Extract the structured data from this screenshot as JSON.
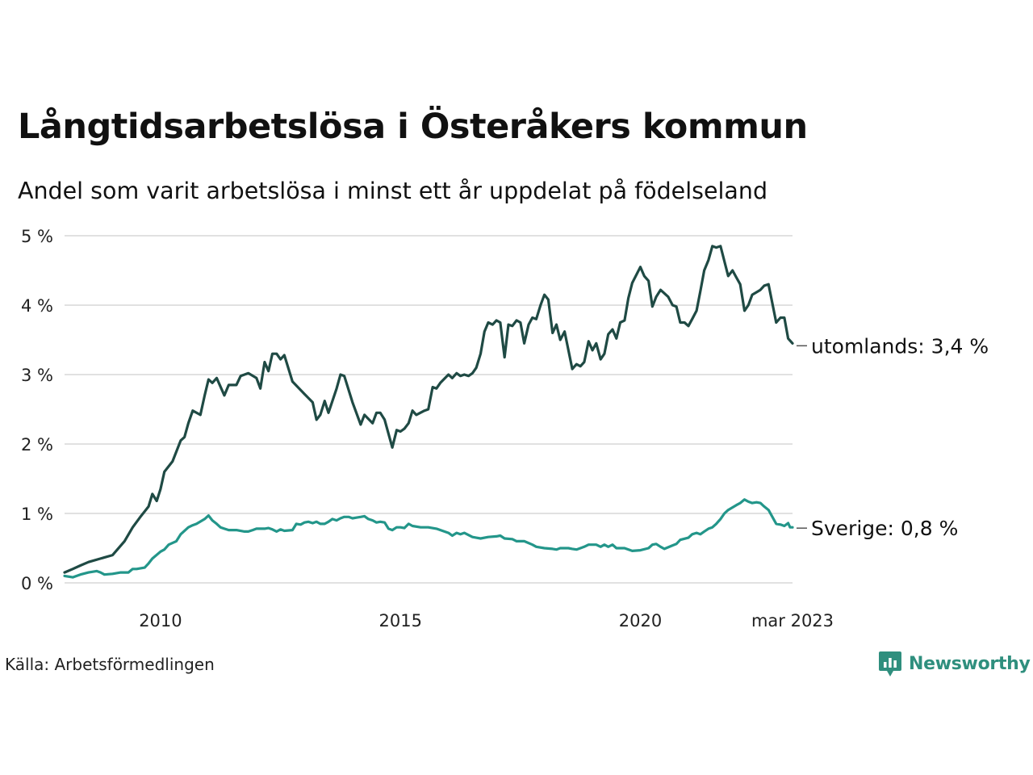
{
  "title": "Långtidsarbetslösa i Österåkers kommun",
  "subtitle": "Andel som varit arbetslösa i minst ett år uppdelat på födelseland",
  "source": "Källa: Arbetsförmedlingen",
  "brand": {
    "name": "Newsworthy",
    "logo_icon": "newsworthy-chart-bubble-icon",
    "color": "#2f8f7e"
  },
  "chart_data": {
    "type": "line",
    "grid": true,
    "ylim": [
      0,
      5
    ],
    "y_ticks": [
      0,
      1,
      2,
      3,
      4,
      5
    ],
    "y_tick_labels": [
      "0 %",
      "1 %",
      "2 %",
      "3 %",
      "4 %",
      "5 %"
    ],
    "x_range": [
      2008.0,
      2023.17
    ],
    "x_ticks": [
      2010,
      2015,
      2020,
      2023.17
    ],
    "x_tick_labels": [
      "2010",
      "2015",
      "2020",
      "mar 2023"
    ],
    "series": [
      {
        "name": "utomlands",
        "end_label": "utomlands: 3,4 %",
        "color": "#1f4a44",
        "points": [
          [
            2008.0,
            0.15
          ],
          [
            2008.17,
            0.2
          ],
          [
            2008.33,
            0.25
          ],
          [
            2008.5,
            0.3
          ],
          [
            2008.75,
            0.35
          ],
          [
            2009.0,
            0.4
          ],
          [
            2009.25,
            0.6
          ],
          [
            2009.42,
            0.8
          ],
          [
            2009.58,
            0.95
          ],
          [
            2009.75,
            1.1
          ],
          [
            2009.83,
            1.28
          ],
          [
            2009.92,
            1.18
          ],
          [
            2010.0,
            1.35
          ],
          [
            2010.08,
            1.6
          ],
          [
            2010.25,
            1.75
          ],
          [
            2010.42,
            2.05
          ],
          [
            2010.5,
            2.1
          ],
          [
            2010.58,
            2.3
          ],
          [
            2010.67,
            2.48
          ],
          [
            2010.83,
            2.42
          ],
          [
            2010.92,
            2.7
          ],
          [
            2011.0,
            2.93
          ],
          [
            2011.08,
            2.88
          ],
          [
            2011.17,
            2.95
          ],
          [
            2011.33,
            2.7
          ],
          [
            2011.42,
            2.85
          ],
          [
            2011.58,
            2.85
          ],
          [
            2011.67,
            2.98
          ],
          [
            2011.83,
            3.02
          ],
          [
            2012.0,
            2.95
          ],
          [
            2012.08,
            2.8
          ],
          [
            2012.17,
            3.18
          ],
          [
            2012.25,
            3.05
          ],
          [
            2012.33,
            3.3
          ],
          [
            2012.42,
            3.3
          ],
          [
            2012.5,
            3.22
          ],
          [
            2012.58,
            3.28
          ],
          [
            2012.75,
            2.9
          ],
          [
            2013.0,
            2.72
          ],
          [
            2013.17,
            2.6
          ],
          [
            2013.25,
            2.35
          ],
          [
            2013.33,
            2.42
          ],
          [
            2013.42,
            2.62
          ],
          [
            2013.5,
            2.45
          ],
          [
            2013.67,
            2.8
          ],
          [
            2013.75,
            3.0
          ],
          [
            2013.83,
            2.98
          ],
          [
            2014.0,
            2.6
          ],
          [
            2014.17,
            2.28
          ],
          [
            2014.25,
            2.42
          ],
          [
            2014.42,
            2.3
          ],
          [
            2014.5,
            2.45
          ],
          [
            2014.58,
            2.45
          ],
          [
            2014.67,
            2.35
          ],
          [
            2014.83,
            1.95
          ],
          [
            2014.92,
            2.2
          ],
          [
            2015.0,
            2.18
          ],
          [
            2015.08,
            2.22
          ],
          [
            2015.17,
            2.3
          ],
          [
            2015.25,
            2.48
          ],
          [
            2015.33,
            2.42
          ],
          [
            2015.5,
            2.48
          ],
          [
            2015.58,
            2.5
          ],
          [
            2015.67,
            2.82
          ],
          [
            2015.75,
            2.8
          ],
          [
            2015.83,
            2.88
          ],
          [
            2016.0,
            3.0
          ],
          [
            2016.08,
            2.95
          ],
          [
            2016.17,
            3.02
          ],
          [
            2016.25,
            2.98
          ],
          [
            2016.33,
            3.0
          ],
          [
            2016.42,
            2.98
          ],
          [
            2016.5,
            3.02
          ],
          [
            2016.58,
            3.1
          ],
          [
            2016.67,
            3.3
          ],
          [
            2016.75,
            3.62
          ],
          [
            2016.83,
            3.75
          ],
          [
            2016.92,
            3.72
          ],
          [
            2017.0,
            3.78
          ],
          [
            2017.08,
            3.75
          ],
          [
            2017.17,
            3.25
          ],
          [
            2017.25,
            3.72
          ],
          [
            2017.33,
            3.7
          ],
          [
            2017.42,
            3.78
          ],
          [
            2017.5,
            3.75
          ],
          [
            2017.58,
            3.45
          ],
          [
            2017.67,
            3.72
          ],
          [
            2017.75,
            3.82
          ],
          [
            2017.83,
            3.8
          ],
          [
            2017.92,
            4.0
          ],
          [
            2018.0,
            4.15
          ],
          [
            2018.08,
            4.08
          ],
          [
            2018.17,
            3.6
          ],
          [
            2018.25,
            3.72
          ],
          [
            2018.33,
            3.5
          ],
          [
            2018.42,
            3.62
          ],
          [
            2018.58,
            3.08
          ],
          [
            2018.67,
            3.15
          ],
          [
            2018.75,
            3.12
          ],
          [
            2018.83,
            3.18
          ],
          [
            2018.92,
            3.48
          ],
          [
            2019.0,
            3.35
          ],
          [
            2019.08,
            3.45
          ],
          [
            2019.17,
            3.22
          ],
          [
            2019.25,
            3.3
          ],
          [
            2019.33,
            3.58
          ],
          [
            2019.42,
            3.65
          ],
          [
            2019.5,
            3.52
          ],
          [
            2019.58,
            3.75
          ],
          [
            2019.67,
            3.78
          ],
          [
            2019.75,
            4.1
          ],
          [
            2019.83,
            4.32
          ],
          [
            2020.0,
            4.55
          ],
          [
            2020.08,
            4.42
          ],
          [
            2020.17,
            4.35
          ],
          [
            2020.25,
            3.98
          ],
          [
            2020.33,
            4.12
          ],
          [
            2020.42,
            4.22
          ],
          [
            2020.58,
            4.12
          ],
          [
            2020.67,
            4.0
          ],
          [
            2020.75,
            3.98
          ],
          [
            2020.83,
            3.75
          ],
          [
            2020.92,
            3.75
          ],
          [
            2021.0,
            3.7
          ],
          [
            2021.08,
            3.8
          ],
          [
            2021.17,
            3.92
          ],
          [
            2021.25,
            4.2
          ],
          [
            2021.33,
            4.5
          ],
          [
            2021.42,
            4.65
          ],
          [
            2021.5,
            4.85
          ],
          [
            2021.58,
            4.83
          ],
          [
            2021.67,
            4.85
          ],
          [
            2021.83,
            4.42
          ],
          [
            2021.92,
            4.5
          ],
          [
            2022.0,
            4.4
          ],
          [
            2022.08,
            4.3
          ],
          [
            2022.17,
            3.92
          ],
          [
            2022.25,
            4.0
          ],
          [
            2022.33,
            4.15
          ],
          [
            2022.5,
            4.22
          ],
          [
            2022.58,
            4.28
          ],
          [
            2022.67,
            4.3
          ],
          [
            2022.83,
            3.75
          ],
          [
            2022.92,
            3.82
          ],
          [
            2023.0,
            3.82
          ],
          [
            2023.08,
            3.52
          ],
          [
            2023.17,
            3.45
          ]
        ]
      },
      {
        "name": "Sverige",
        "end_label": "Sverige: 0,8 %",
        "color": "#23968a",
        "points": [
          [
            2008.0,
            0.1
          ],
          [
            2008.17,
            0.08
          ],
          [
            2008.33,
            0.12
          ],
          [
            2008.5,
            0.15
          ],
          [
            2008.67,
            0.17
          ],
          [
            2008.75,
            0.15
          ],
          [
            2008.83,
            0.12
          ],
          [
            2009.0,
            0.13
          ],
          [
            2009.17,
            0.15
          ],
          [
            2009.33,
            0.15
          ],
          [
            2009.42,
            0.2
          ],
          [
            2009.5,
            0.2
          ],
          [
            2009.67,
            0.22
          ],
          [
            2009.75,
            0.28
          ],
          [
            2009.83,
            0.35
          ],
          [
            2010.0,
            0.45
          ],
          [
            2010.08,
            0.48
          ],
          [
            2010.17,
            0.55
          ],
          [
            2010.33,
            0.6
          ],
          [
            2010.42,
            0.7
          ],
          [
            2010.58,
            0.8
          ],
          [
            2010.67,
            0.83
          ],
          [
            2010.75,
            0.85
          ],
          [
            2010.92,
            0.92
          ],
          [
            2011.0,
            0.97
          ],
          [
            2011.08,
            0.9
          ],
          [
            2011.17,
            0.85
          ],
          [
            2011.25,
            0.8
          ],
          [
            2011.33,
            0.78
          ],
          [
            2011.42,
            0.76
          ],
          [
            2011.58,
            0.76
          ],
          [
            2011.75,
            0.74
          ],
          [
            2011.83,
            0.74
          ],
          [
            2011.92,
            0.76
          ],
          [
            2012.0,
            0.78
          ],
          [
            2012.17,
            0.78
          ],
          [
            2012.25,
            0.79
          ],
          [
            2012.33,
            0.77
          ],
          [
            2012.42,
            0.74
          ],
          [
            2012.5,
            0.77
          ],
          [
            2012.58,
            0.75
          ],
          [
            2012.75,
            0.76
          ],
          [
            2012.83,
            0.85
          ],
          [
            2012.92,
            0.84
          ],
          [
            2013.0,
            0.87
          ],
          [
            2013.08,
            0.88
          ],
          [
            2013.17,
            0.86
          ],
          [
            2013.25,
            0.88
          ],
          [
            2013.33,
            0.85
          ],
          [
            2013.42,
            0.85
          ],
          [
            2013.5,
            0.88
          ],
          [
            2013.58,
            0.92
          ],
          [
            2013.67,
            0.9
          ],
          [
            2013.75,
            0.93
          ],
          [
            2013.83,
            0.95
          ],
          [
            2013.92,
            0.95
          ],
          [
            2014.0,
            0.93
          ],
          [
            2014.08,
            0.94
          ],
          [
            2014.17,
            0.95
          ],
          [
            2014.25,
            0.96
          ],
          [
            2014.33,
            0.92
          ],
          [
            2014.42,
            0.9
          ],
          [
            2014.5,
            0.87
          ],
          [
            2014.58,
            0.88
          ],
          [
            2014.67,
            0.87
          ],
          [
            2014.75,
            0.78
          ],
          [
            2014.83,
            0.76
          ],
          [
            2014.92,
            0.8
          ],
          [
            2015.0,
            0.8
          ],
          [
            2015.08,
            0.79
          ],
          [
            2015.17,
            0.85
          ],
          [
            2015.25,
            0.82
          ],
          [
            2015.42,
            0.8
          ],
          [
            2015.58,
            0.8
          ],
          [
            2015.75,
            0.78
          ],
          [
            2016.0,
            0.72
          ],
          [
            2016.08,
            0.68
          ],
          [
            2016.17,
            0.72
          ],
          [
            2016.25,
            0.7
          ],
          [
            2016.33,
            0.72
          ],
          [
            2016.5,
            0.66
          ],
          [
            2016.58,
            0.65
          ],
          [
            2016.67,
            0.64
          ],
          [
            2016.83,
            0.66
          ],
          [
            2017.0,
            0.67
          ],
          [
            2017.08,
            0.68
          ],
          [
            2017.17,
            0.64
          ],
          [
            2017.33,
            0.63
          ],
          [
            2017.42,
            0.6
          ],
          [
            2017.58,
            0.6
          ],
          [
            2017.75,
            0.55
          ],
          [
            2017.83,
            0.52
          ],
          [
            2018.0,
            0.5
          ],
          [
            2018.17,
            0.49
          ],
          [
            2018.25,
            0.48
          ],
          [
            2018.33,
            0.5
          ],
          [
            2018.5,
            0.5
          ],
          [
            2018.58,
            0.49
          ],
          [
            2018.67,
            0.48
          ],
          [
            2018.75,
            0.5
          ],
          [
            2018.83,
            0.52
          ],
          [
            2018.92,
            0.55
          ],
          [
            2019.08,
            0.55
          ],
          [
            2019.17,
            0.52
          ],
          [
            2019.25,
            0.55
          ],
          [
            2019.33,
            0.52
          ],
          [
            2019.42,
            0.55
          ],
          [
            2019.5,
            0.5
          ],
          [
            2019.67,
            0.5
          ],
          [
            2019.83,
            0.46
          ],
          [
            2020.0,
            0.47
          ],
          [
            2020.17,
            0.5
          ],
          [
            2020.25,
            0.55
          ],
          [
            2020.33,
            0.56
          ],
          [
            2020.42,
            0.52
          ],
          [
            2020.5,
            0.49
          ],
          [
            2020.67,
            0.54
          ],
          [
            2020.75,
            0.56
          ],
          [
            2020.83,
            0.62
          ],
          [
            2021.0,
            0.65
          ],
          [
            2021.08,
            0.7
          ],
          [
            2021.17,
            0.72
          ],
          [
            2021.25,
            0.7
          ],
          [
            2021.33,
            0.74
          ],
          [
            2021.42,
            0.78
          ],
          [
            2021.5,
            0.8
          ],
          [
            2021.58,
            0.85
          ],
          [
            2021.67,
            0.92
          ],
          [
            2021.75,
            1.0
          ],
          [
            2021.83,
            1.05
          ],
          [
            2022.0,
            1.12
          ],
          [
            2022.08,
            1.15
          ],
          [
            2022.17,
            1.2
          ],
          [
            2022.25,
            1.17
          ],
          [
            2022.33,
            1.15
          ],
          [
            2022.42,
            1.16
          ],
          [
            2022.5,
            1.15
          ],
          [
            2022.58,
            1.1
          ],
          [
            2022.67,
            1.05
          ],
          [
            2022.83,
            0.85
          ],
          [
            2022.92,
            0.84
          ],
          [
            2023.0,
            0.82
          ],
          [
            2023.08,
            0.86
          ],
          [
            2023.12,
            0.8
          ],
          [
            2023.17,
            0.8
          ]
        ]
      }
    ]
  }
}
